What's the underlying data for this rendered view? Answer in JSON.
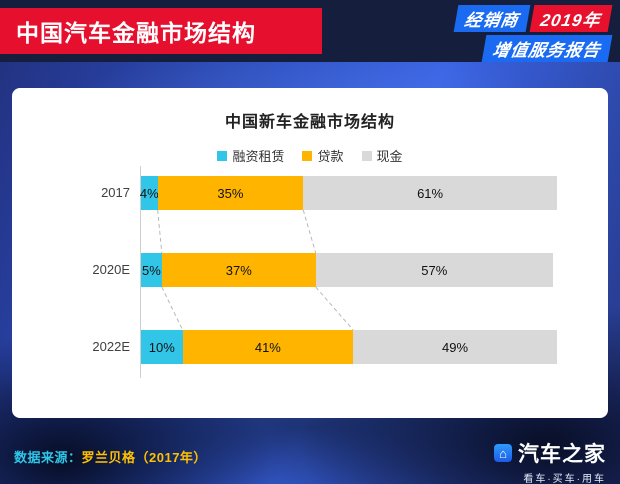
{
  "header": {
    "title": "中国汽车金融市场结构",
    "report_badge": {
      "line1_primary": "经销商",
      "line1_year": "2019年",
      "line2": "增值服务报告",
      "blue": "#1a6bf2",
      "red": "#e8112d"
    }
  },
  "chart_data": {
    "type": "bar",
    "orientation": "horizontal",
    "stacked": true,
    "title": "中国新车金融市场结构",
    "categories": [
      "2017",
      "2020E",
      "2022E"
    ],
    "series": [
      {
        "name": "融资租赁",
        "color": "#31c6e8",
        "values": [
          4,
          5,
          10
        ]
      },
      {
        "name": "贷款",
        "color": "#ffb400",
        "values": [
          35,
          37,
          41
        ]
      },
      {
        "name": "现金",
        "color": "#d9d9d9",
        "values": [
          61,
          57,
          49
        ]
      }
    ],
    "value_suffix": "%",
    "xlim": [
      0,
      100
    ],
    "legend_position": "top",
    "data_labels": true,
    "grid": false
  },
  "footer": {
    "source_label": "数据来源：",
    "source_value": "罗兰贝格（2017年）",
    "brand": "汽车之家",
    "brand_icon_glyph": "⌂",
    "brand_tagline": "看车·买车·用车"
  },
  "colors": {
    "header_bg": "#151e3c",
    "title_plate_red": "#e60f2e",
    "accent_cyan": "#2fc6e8",
    "accent_yellow": "#ffc000",
    "card_bg": "#ffffff"
  }
}
